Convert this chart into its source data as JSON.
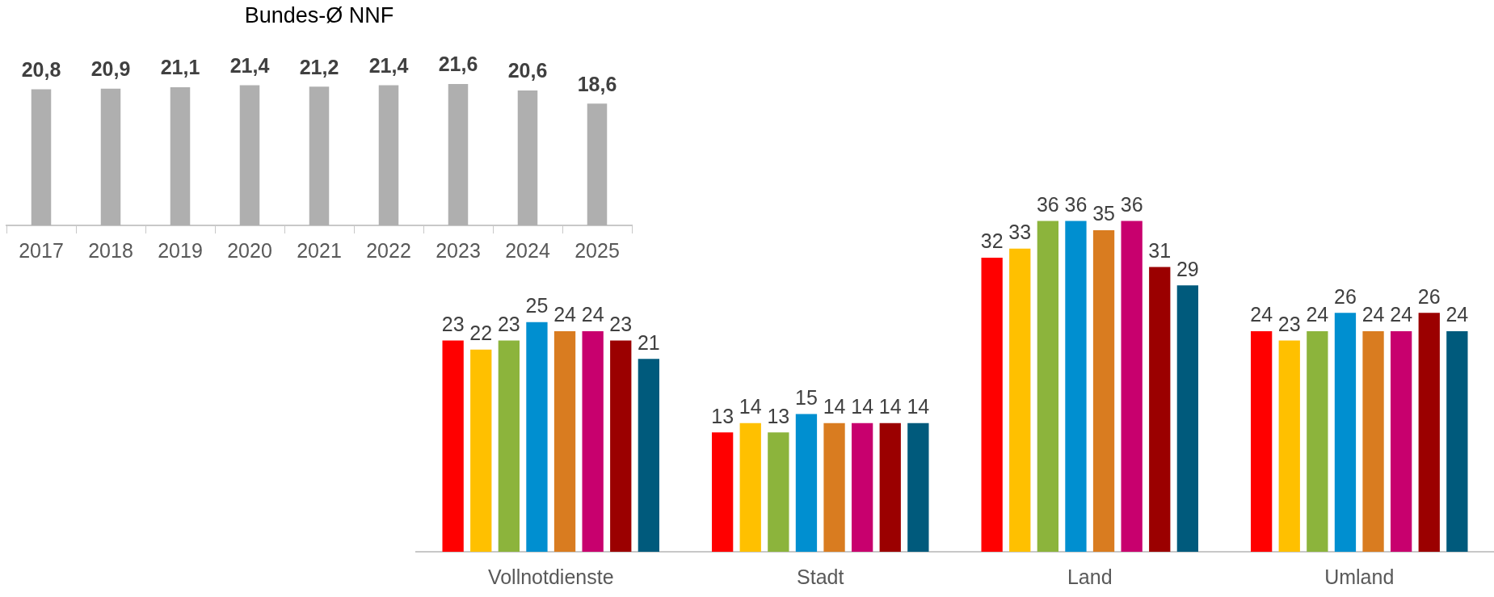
{
  "chart_data": [
    {
      "type": "bar",
      "title": "Bundes-Ø NNF",
      "categories": [
        "2017",
        "2018",
        "2019",
        "2020",
        "2021",
        "2022",
        "2023",
        "2024",
        "2025"
      ],
      "values": [
        20.8,
        20.9,
        21.1,
        21.4,
        21.2,
        21.4,
        21.6,
        20.6,
        18.6
      ],
      "color": "#afafaf",
      "value_labels": [
        "20,8",
        "20,9",
        "21,1",
        "21,4",
        "21,2",
        "21,4",
        "21,6",
        "20,6",
        "18,6"
      ],
      "legend": false,
      "grid": false
    },
    {
      "type": "bar",
      "categories": [
        "Vollnotdienste",
        "Stadt",
        "Land",
        "Umland"
      ],
      "series": [
        {
          "color": "#ff0000",
          "values": [
            23,
            13,
            32,
            24
          ]
        },
        {
          "color": "#ffc000",
          "values": [
            22,
            14,
            33,
            23
          ]
        },
        {
          "color": "#8cb43c",
          "values": [
            23,
            13,
            36,
            24
          ]
        },
        {
          "color": "#008fd0",
          "values": [
            25,
            15,
            36,
            26
          ]
        },
        {
          "color": "#d97c20",
          "values": [
            24,
            14,
            35,
            24
          ]
        },
        {
          "color": "#c8006e",
          "values": [
            24,
            14,
            36,
            24
          ]
        },
        {
          "color": "#9b0000",
          "values": [
            23,
            14,
            31,
            26
          ]
        },
        {
          "color": "#005a7c",
          "values": [
            21,
            14,
            29,
            24
          ]
        }
      ],
      "data_labels": true,
      "legend": false,
      "grid": false
    }
  ]
}
